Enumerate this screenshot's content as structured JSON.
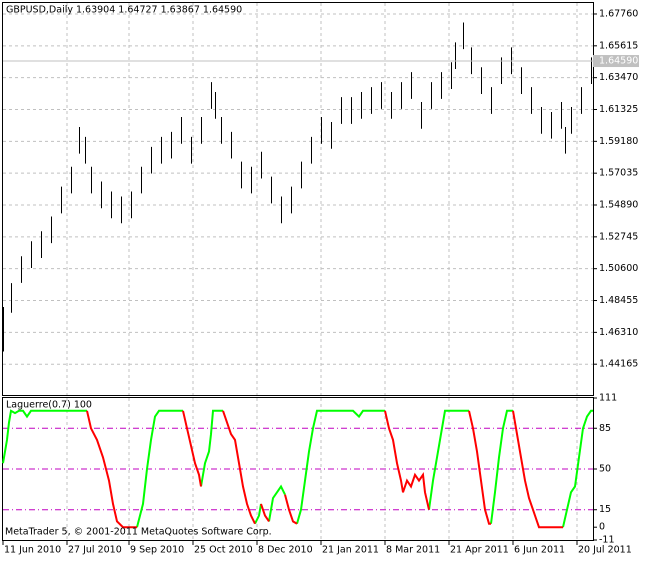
{
  "chart_data": [
    {
      "type": "hlbar",
      "title": "GBPUSD,Daily  1.63904 1.64727 1.63867 1.64590",
      "color": "#000000",
      "x": [
        0,
        4,
        9,
        14,
        19,
        24,
        29,
        34,
        38,
        41,
        44,
        49,
        54,
        59,
        64,
        69,
        74,
        79,
        84,
        89,
        94,
        99,
        104,
        106,
        109,
        114,
        119,
        124,
        129,
        134,
        139,
        144,
        149,
        154,
        159,
        164,
        169,
        174,
        179,
        184,
        189,
        194,
        199,
        204,
        209,
        214,
        219,
        224,
        226,
        230,
        234,
        239,
        244,
        249,
        254,
        259,
        264,
        269,
        274,
        279,
        281,
        284,
        289,
        294
      ],
      "high": [
        1.4802,
        1.4963,
        1.5144,
        1.5245,
        1.5312,
        1.5412,
        1.5613,
        1.5747,
        1.6015,
        1.5948,
        1.5747,
        1.5647,
        1.558,
        1.5546,
        1.558,
        1.5747,
        1.5881,
        1.5948,
        1.5982,
        1.6082,
        1.5948,
        1.6082,
        1.6317,
        1.625,
        1.6082,
        1.5982,
        1.5781,
        1.5747,
        1.5848,
        1.568,
        1.5546,
        1.5613,
        1.5781,
        1.5948,
        1.6082,
        1.6048,
        1.6216,
        1.6216,
        1.625,
        1.6283,
        1.6317,
        1.625,
        1.6317,
        1.6384,
        1.6183,
        1.6317,
        1.6384,
        1.6451,
        1.6585,
        1.6719,
        1.6551,
        1.6417,
        1.6283,
        1.6484,
        1.6551,
        1.6417,
        1.6283,
        1.6149,
        1.6116,
        1.6183,
        1.6015,
        1.6149,
        1.6283,
        1.6484
      ],
      "low": [
        1.4502,
        1.4763,
        1.4964,
        1.5065,
        1.5132,
        1.5232,
        1.5433,
        1.5567,
        1.5835,
        1.5768,
        1.5567,
        1.5467,
        1.54,
        1.5366,
        1.54,
        1.5567,
        1.5701,
        1.5768,
        1.5802,
        1.5902,
        1.5768,
        1.5902,
        1.6137,
        1.607,
        1.5902,
        1.5802,
        1.5601,
        1.5567,
        1.5668,
        1.55,
        1.5366,
        1.5433,
        1.5601,
        1.5768,
        1.5902,
        1.5868,
        1.6036,
        1.6036,
        1.607,
        1.6103,
        1.6137,
        1.607,
        1.6137,
        1.6204,
        1.6003,
        1.6137,
        1.6204,
        1.6271,
        1.6405,
        1.6539,
        1.6371,
        1.6237,
        1.6103,
        1.6304,
        1.6371,
        1.6237,
        1.6103,
        1.5969,
        1.5936,
        1.6003,
        1.5835,
        1.5969,
        1.6103,
        1.6304
      ],
      "last_price": {
        "value": 1.6459,
        "label": "1.64590"
      },
      "xlim": [
        0,
        295
      ],
      "xticks": [
        {
          "value": 0,
          "label": "11 Jun 2010"
        },
        {
          "value": 32,
          "label": "27 Jul 2010"
        },
        {
          "value": 63,
          "label": "9 Sep 2010"
        },
        {
          "value": 95,
          "label": "25 Oct 2010"
        },
        {
          "value": 127,
          "label": "8 Dec 2010"
        },
        {
          "value": 159,
          "label": "21 Jan 2011"
        },
        {
          "value": 191,
          "label": "8 Mar 2011"
        },
        {
          "value": 223,
          "label": "21 Apr 2011"
        },
        {
          "value": 255,
          "label": "6 Jun 2011"
        },
        {
          "value": 287,
          "label": "20 Jul 2011"
        }
      ],
      "ylim": [
        1.4209,
        1.685
      ],
      "yticks": [
        {
          "value": 1.6776,
          "label": "1.67760"
        },
        {
          "value": 1.65615,
          "label": "1.65615"
        },
        {
          "value": 1.6347,
          "label": "1.63470"
        },
        {
          "value": 1.61325,
          "label": "1.61325"
        },
        {
          "value": 1.5918,
          "label": "1.59180"
        },
        {
          "value": 1.57035,
          "label": "1.57035"
        },
        {
          "value": 1.5489,
          "label": "1.54890"
        },
        {
          "value": 1.52745,
          "label": "1.52745"
        },
        {
          "value": 1.506,
          "label": "1.50600"
        },
        {
          "value": 1.48455,
          "label": "1.48455"
        },
        {
          "value": 1.4631,
          "label": "1.46310"
        },
        {
          "value": 1.44165,
          "label": "1.44165"
        }
      ],
      "grid": true
    },
    {
      "type": "line",
      "title": "Laguerre(0.7) 100",
      "annotation": "MetaTrader 5, © 2001-2011 MetaQuotes Software Corp.",
      "xlim": [
        0,
        295
      ],
      "ylim": [
        -11,
        111
      ],
      "yticks": [
        111,
        85,
        50,
        15,
        0,
        -11
      ],
      "levels": [
        85,
        50,
        15
      ],
      "level_color": "#c000c0",
      "series": [
        {
          "color": "#00ff00",
          "x": [
            0,
            2,
            3,
            4,
            6,
            8,
            10,
            12,
            14,
            16,
            20,
            30,
            42,
            null,
            67,
            70,
            72,
            74,
            76,
            78,
            90,
            null,
            99,
            101,
            103,
            104,
            105,
            110,
            null,
            126,
            128,
            129,
            null,
            133,
            135,
            137,
            139,
            141,
            null,
            147,
            149,
            151,
            153,
            155,
            157,
            165,
            175,
            178,
            180,
            191,
            null,
            213,
            215,
            217,
            219,
            221,
            233,
            null,
            244,
            246,
            248,
            250,
            252,
            255,
            null,
            280,
            282,
            284,
            286,
            288,
            290,
            292,
            294,
            295
          ],
          "values": [
            55,
            75,
            90,
            100,
            98,
            100,
            100,
            95,
            100,
            100,
            100,
            100,
            100,
            null,
            0,
            20,
            50,
            75,
            95,
            100,
            100,
            null,
            35,
            55,
            65,
            80,
            100,
            100,
            null,
            3,
            10,
            20,
            null,
            5,
            25,
            30,
            35,
            28,
            null,
            3,
            15,
            40,
            65,
            85,
            100,
            100,
            100,
            95,
            100,
            100,
            null,
            15,
            40,
            60,
            80,
            100,
            100,
            null,
            3,
            30,
            60,
            85,
            100,
            100,
            null,
            0,
            15,
            30,
            35,
            60,
            85,
            95,
            100,
            100
          ]
        },
        {
          "color": "#ff0000",
          "x": [
            42,
            44,
            47,
            50,
            53,
            55,
            57,
            60,
            67,
            null,
            90,
            92,
            94,
            96,
            98,
            99,
            null,
            110,
            112,
            114,
            116,
            118,
            120,
            122,
            124,
            126,
            null,
            129,
            131,
            133,
            null,
            141,
            143,
            145,
            147,
            null,
            191,
            193,
            195,
            197,
            199,
            200,
            202,
            204,
            206,
            208,
            210,
            211,
            213,
            null,
            233,
            235,
            237,
            239,
            241,
            243,
            244,
            null,
            255,
            257,
            259,
            261,
            263,
            265,
            267,
            268,
            280
          ],
          "values": [
            100,
            85,
            75,
            60,
            40,
            20,
            5,
            0,
            0,
            null,
            100,
            85,
            70,
            55,
            45,
            35,
            null,
            100,
            90,
            80,
            75,
            55,
            35,
            20,
            10,
            3,
            null,
            20,
            10,
            5,
            null,
            28,
            15,
            5,
            3,
            null,
            100,
            85,
            75,
            55,
            40,
            30,
            40,
            35,
            45,
            40,
            45,
            30,
            15,
            null,
            100,
            85,
            65,
            40,
            15,
            3,
            3,
            null,
            100,
            80,
            60,
            40,
            25,
            15,
            5,
            0,
            0
          ]
        }
      ]
    }
  ]
}
